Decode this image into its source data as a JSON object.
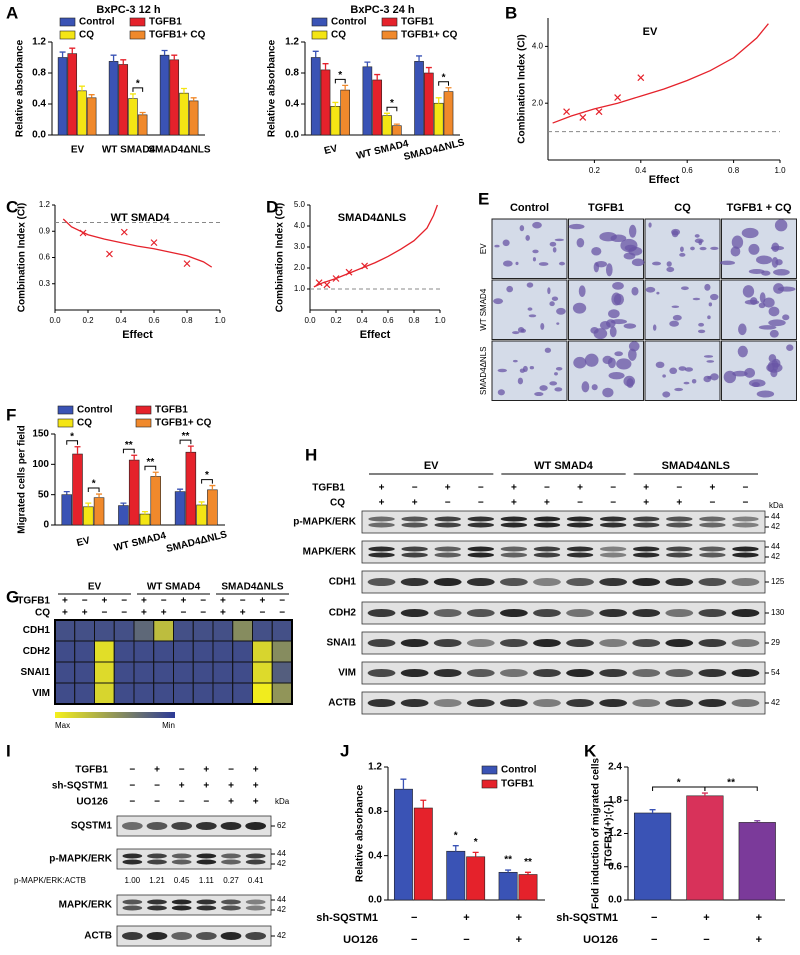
{
  "panels": [
    "A",
    "B",
    "C",
    "D",
    "E",
    "F",
    "G",
    "H",
    "I",
    "J",
    "K"
  ],
  "chart_data": [
    {
      "type": "bar",
      "title": "BxPC-3 12 h",
      "ylabel": "Relative absorbance",
      "categories": [
        "EV",
        "WT SMAD4",
        "SMAD4ΔNLS"
      ],
      "series": [
        {
          "name": "Control",
          "color": "#3a53b5",
          "values": [
            1.0,
            0.95,
            1.03
          ],
          "errors": [
            0.07,
            0.08,
            0.06
          ]
        },
        {
          "name": "TGFB1",
          "color": "#e5222b",
          "values": [
            1.05,
            0.91,
            0.97
          ],
          "errors": [
            0.07,
            0.06,
            0.06
          ]
        },
        {
          "name": "CQ",
          "color": "#f4e514",
          "values": [
            0.57,
            0.47,
            0.54
          ],
          "errors": [
            0.06,
            0.06,
            0.06
          ]
        },
        {
          "name": "TGFB1+ CQ",
          "color": "#f0892c",
          "values": [
            0.48,
            0.26,
            0.44
          ],
          "errors": [
            0.04,
            0.03,
            0.04
          ]
        }
      ],
      "ylim": [
        0,
        1.2
      ],
      "yticks": [
        {
          "value": 0,
          "label": "0.0"
        },
        0.4,
        0.8,
        1.2
      ],
      "annotations": [
        {
          "text": "*",
          "category": 1,
          "series": [
            2,
            3
          ]
        }
      ]
    },
    {
      "type": "bar",
      "title": "BxPC-3 24 h",
      "ylabel": "Relative absorbance",
      "categories": [
        "EV",
        "WT SMAD4",
        "SMAD4ΔNLS"
      ],
      "series": [
        {
          "name": "Control",
          "color": "#3a53b5",
          "values": [
            1.0,
            0.88,
            0.95
          ],
          "errors": [
            0.08,
            0.06,
            0.07
          ]
        },
        {
          "name": "TGFB1",
          "color": "#e5222b",
          "values": [
            0.84,
            0.71,
            0.8
          ],
          "errors": [
            0.08,
            0.07,
            0.07
          ]
        },
        {
          "name": "CQ",
          "color": "#f4e514",
          "values": [
            0.37,
            0.25,
            0.41
          ],
          "errors": [
            0.05,
            0.03,
            0.07
          ]
        },
        {
          "name": "TGFB1+ CQ",
          "color": "#f0892c",
          "values": [
            0.58,
            0.12,
            0.56
          ],
          "errors": [
            0.06,
            0.02,
            0.05
          ]
        }
      ],
      "ylim": [
        0,
        1.2
      ],
      "yticks": [
        {
          "value": 0,
          "label": "0.0"
        },
        0.4,
        0.8,
        1.2
      ],
      "annotations": [
        {
          "text": "*",
          "category": 0,
          "series": [
            2,
            3
          ]
        },
        {
          "text": "*",
          "category": 1,
          "series": [
            2,
            3
          ]
        },
        {
          "text": "*",
          "category": 2,
          "series": [
            2,
            3
          ]
        }
      ]
    },
    {
      "type": "scatter",
      "title": "EV",
      "xlabel": "Effect",
      "ylabel": "Combination Index (CI)",
      "color": "#e5222b",
      "x": [
        0.08,
        0.15,
        0.22,
        0.3,
        0.4
      ],
      "values": [
        1.7,
        1.5,
        1.7,
        2.2,
        2.9
      ],
      "curve": {
        "x": [
          0.02,
          0.1,
          0.2,
          0.3,
          0.4,
          0.5,
          0.6,
          0.7,
          0.8,
          0.9,
          0.95
        ],
        "values": [
          1.3,
          1.55,
          1.8,
          2.0,
          2.25,
          2.5,
          2.8,
          3.15,
          3.6,
          4.3,
          4.8
        ]
      },
      "reference": 1.0,
      "xlim": [
        0,
        1
      ],
      "xticks": [
        0.2,
        0.4,
        0.6,
        0.8,
        {
          "value": 1,
          "label": "1.0"
        }
      ],
      "ylim": [
        0,
        5
      ],
      "yticks": [
        {
          "value": 2,
          "label": "2.0"
        },
        {
          "value": 4,
          "label": "4.0"
        }
      ]
    },
    {
      "type": "scatter",
      "title": "WT SMAD4",
      "xlabel": "Effect",
      "ylabel": "Combination Index (CI)",
      "color": "#e5222b",
      "x": [
        0.17,
        0.33,
        0.42,
        0.6,
        0.8
      ],
      "values": [
        0.88,
        0.64,
        0.89,
        0.77,
        0.53
      ],
      "curve": {
        "x": [
          0.05,
          0.1,
          0.2,
          0.3,
          0.4,
          0.5,
          0.6,
          0.7,
          0.8,
          0.9,
          0.95
        ],
        "values": [
          1.04,
          0.95,
          0.86,
          0.81,
          0.77,
          0.73,
          0.7,
          0.66,
          0.62,
          0.55,
          0.49
        ]
      },
      "reference": 1.0,
      "xlim": [
        0,
        1
      ],
      "xticks": [
        {
          "value": 0,
          "label": "0.0"
        },
        0.2,
        0.4,
        0.6,
        0.8,
        {
          "value": 1,
          "label": "1.0"
        }
      ],
      "ylim": [
        0,
        1.2
      ],
      "yticks": [
        0.3,
        0.6,
        0.9,
        1.2
      ]
    },
    {
      "type": "scatter",
      "title": "SMAD4ΔNLS",
      "xlabel": "Effect",
      "ylabel": "Combination Index (CI)",
      "color": "#e5222b",
      "x": [
        0.07,
        0.13,
        0.2,
        0.3,
        0.42
      ],
      "values": [
        1.3,
        1.2,
        1.5,
        1.8,
        2.1
      ],
      "curve": {
        "x": [
          0.03,
          0.1,
          0.2,
          0.3,
          0.4,
          0.5,
          0.6,
          0.7,
          0.8,
          0.9,
          0.95,
          0.98
        ],
        "values": [
          1.1,
          1.3,
          1.5,
          1.75,
          2.0,
          2.25,
          2.55,
          2.9,
          3.3,
          3.9,
          4.5,
          5.0
        ]
      },
      "reference": 1.0,
      "xlim": [
        0,
        1
      ],
      "xticks": [
        {
          "value": 0,
          "label": "0.0"
        },
        0.2,
        0.4,
        0.6,
        0.8,
        {
          "value": 1,
          "label": "1.0"
        }
      ],
      "ylim": [
        0,
        5
      ],
      "yticks": [
        {
          "value": 1,
          "label": "1.0"
        },
        {
          "value": 2,
          "label": "2.0"
        },
        {
          "value": 3,
          "label": "3.0"
        },
        {
          "value": 4,
          "label": "4.0"
        },
        {
          "value": 5,
          "label": "5.0"
        }
      ]
    },
    {
      "type": "bar",
      "ylabel": "Migrated cells per field",
      "categories": [
        "EV",
        "WT SMAD4",
        "SMAD4ΔNLS"
      ],
      "series": [
        {
          "name": "Control",
          "color": "#3a53b5",
          "values": [
            50,
            32,
            55
          ],
          "errors": [
            5,
            4,
            4
          ]
        },
        {
          "name": "TGFB1",
          "color": "#e5222b",
          "values": [
            117,
            107,
            120
          ],
          "errors": [
            12,
            8,
            10
          ]
        },
        {
          "name": "CQ",
          "color": "#f4e514",
          "values": [
            30,
            18,
            33
          ],
          "errors": [
            6,
            4,
            5
          ]
        },
        {
          "name": "TGFB1+ CQ",
          "color": "#f0892c",
          "values": [
            45,
            80,
            58
          ],
          "errors": [
            6,
            7,
            7
          ]
        }
      ],
      "ylim": [
        0,
        150
      ],
      "yticks": [
        0,
        50,
        100,
        150
      ],
      "annotations": [
        {
          "text": "*",
          "category": 0,
          "series": [
            0,
            1
          ]
        },
        {
          "text": "*",
          "category": 0,
          "series": [
            2,
            3
          ]
        },
        {
          "text": "**",
          "category": 1,
          "series": [
            0,
            1
          ]
        },
        {
          "text": "**",
          "category": 1,
          "series": [
            2,
            3
          ]
        },
        {
          "text": "**",
          "category": 2,
          "series": [
            0,
            1
          ]
        },
        {
          "text": "*",
          "category": 2,
          "series": [
            2,
            3
          ]
        }
      ]
    },
    {
      "type": "bar",
      "ylabel": "Relative absorbance",
      "categories": [
        null,
        null,
        null
      ],
      "series": [
        {
          "name": "Control",
          "color": "#3a53b5",
          "values": [
            1.0,
            0.44,
            0.25
          ],
          "errors": [
            0.09,
            0.05,
            0.02
          ]
        },
        {
          "name": "TGFB1",
          "color": "#e5222b",
          "values": [
            0.83,
            0.39,
            0.23
          ],
          "errors": [
            0.07,
            0.04,
            0.02
          ]
        }
      ],
      "ylim": [
        0,
        1.2
      ],
      "yticks": [
        {
          "value": 0,
          "label": "0.0"
        },
        0.4,
        0.8,
        1.2
      ],
      "annotations": [
        {
          "text": "*",
          "category": 1,
          "series": [
            0
          ]
        },
        {
          "text": "*",
          "category": 1,
          "series": [
            1
          ]
        },
        {
          "text": "**",
          "category": 2,
          "series": [
            0
          ]
        },
        {
          "text": "**",
          "category": 2,
          "series": [
            1
          ]
        }
      ],
      "conditions": [
        {
          "label": "sh-SQSTM1",
          "values": [
            "−",
            "+",
            "+"
          ]
        },
        {
          "label": "UO126",
          "values": [
            "−",
            "−",
            "+"
          ]
        }
      ]
    },
    {
      "type": "bar",
      "ylabel": [
        "Fold induction of migrated cells",
        "[TGFB1(+):(-)]"
      ],
      "categories": [
        null,
        null,
        null
      ],
      "values": [
        1.57,
        1.88,
        1.4
      ],
      "errors": [
        0.06,
        0.05,
        0.03
      ],
      "colors": [
        "#3a53b5",
        "#d8325a",
        "#7b3a9a"
      ],
      "ylim": [
        0,
        2.4
      ],
      "yticks": [
        {
          "value": 0,
          "label": "0.0"
        },
        0.6,
        1.2,
        1.8,
        2.4
      ],
      "annotations": [
        {
          "text": "*",
          "categories": [
            0,
            1
          ]
        },
        {
          "text": "**",
          "categories": [
            1,
            2
          ]
        }
      ],
      "conditions": [
        {
          "label": "sh-SQSTM1",
          "values": [
            "−",
            "+",
            "+"
          ]
        },
        {
          "label": "UO126",
          "values": [
            "−",
            "−",
            "+"
          ]
        }
      ]
    },
    {
      "type": "heatmap",
      "groups": [
        "EV",
        "WT SMAD4",
        "SMAD4ΔNLS"
      ],
      "conditions": [
        {
          "label": "TGFB1",
          "values": [
            "+",
            "−",
            "+",
            "−",
            "+",
            "−",
            "+",
            "−",
            "+",
            "−",
            "+",
            "−"
          ]
        },
        {
          "label": "CQ",
          "values": [
            "+",
            "+",
            "−",
            "−",
            "+",
            "+",
            "−",
            "−",
            "+",
            "+",
            "−",
            "−"
          ]
        }
      ],
      "rows": [
        "CDH1",
        "CDH2",
        "SNAI1",
        "VIM"
      ],
      "values": [
        [
          0.12,
          0.12,
          0.12,
          0.12,
          0.25,
          0.72,
          0.12,
          0.12,
          0.12,
          0.45,
          0.12,
          0.12
        ],
        [
          0.1,
          0.1,
          0.9,
          0.1,
          0.1,
          0.1,
          0.1,
          0.1,
          0.1,
          0.1,
          0.85,
          0.45
        ],
        [
          0.1,
          0.1,
          0.88,
          0.1,
          0.1,
          0.1,
          0.1,
          0.1,
          0.1,
          0.1,
          0.88,
          0.2
        ],
        [
          0.1,
          0.1,
          0.85,
          0.1,
          0.1,
          0.1,
          0.1,
          0.1,
          0.1,
          0.1,
          0.98,
          0.5
        ]
      ],
      "scale": [
        "Max",
        "Min"
      ],
      "colors": [
        "#f5f01c",
        "#2c3a96"
      ]
    }
  ],
  "micrographs": {
    "columns": [
      "Control",
      "TGFB1",
      "CQ",
      "TGFB1 + CQ"
    ],
    "rows": [
      "EV",
      "WT SMAD4",
      "SMAD4ΔNLS"
    ]
  },
  "blot_h": {
    "groups": [
      "EV",
      "WT SMAD4",
      "SMAD4ΔNLS"
    ],
    "unit": "kDa",
    "conditions": [
      {
        "label": "TGFB1",
        "values": [
          "+",
          "−",
          "+",
          "−",
          "+",
          "−",
          "+",
          "−",
          "+",
          "−",
          "+",
          "−"
        ]
      },
      {
        "label": "CQ",
        "values": [
          "+",
          "+",
          "−",
          "−",
          "+",
          "+",
          "−",
          "−",
          "+",
          "+",
          "−",
          "−"
        ]
      }
    ],
    "bands": [
      {
        "label": "p-MAPK/ERK",
        "kda": [
          44,
          42
        ]
      },
      {
        "label": "MAPK/ERK",
        "kda": [
          44,
          42
        ]
      },
      {
        "label": "CDH1",
        "kda": [
          125
        ]
      },
      {
        "label": "CDH2",
        "kda": [
          130
        ]
      },
      {
        "label": "SNAI1",
        "kda": [
          29
        ]
      },
      {
        "label": "VIM",
        "kda": [
          54
        ]
      },
      {
        "label": "ACTB",
        "kda": [
          42
        ]
      }
    ]
  },
  "blot_i": {
    "unit": "kDa",
    "conditions": [
      {
        "label": "TGFB1",
        "values": [
          "−",
          "+",
          "−",
          "+",
          "−",
          "+"
        ]
      },
      {
        "label": "sh-SQSTM1",
        "values": [
          "−",
          "−",
          "+",
          "+",
          "+",
          "+"
        ]
      },
      {
        "label": "UO126",
        "values": [
          "−",
          "−",
          "−",
          "−",
          "+",
          "+"
        ]
      }
    ],
    "bands": [
      {
        "label": "SQSTM1",
        "kda": [
          62
        ]
      },
      {
        "label": "p-MAPK/ERK",
        "kda": [
          44,
          42
        ]
      },
      {
        "label": "MAPK/ERK",
        "kda": [
          44,
          42
        ]
      },
      {
        "label": "ACTB",
        "kda": [
          42
        ]
      }
    ],
    "ratio": {
      "label": "p-MAPK/ERK:ACTB",
      "values": [
        "1.00",
        "1.21",
        "0.45",
        "1.11",
        "0.27",
        "0.41"
      ]
    }
  }
}
